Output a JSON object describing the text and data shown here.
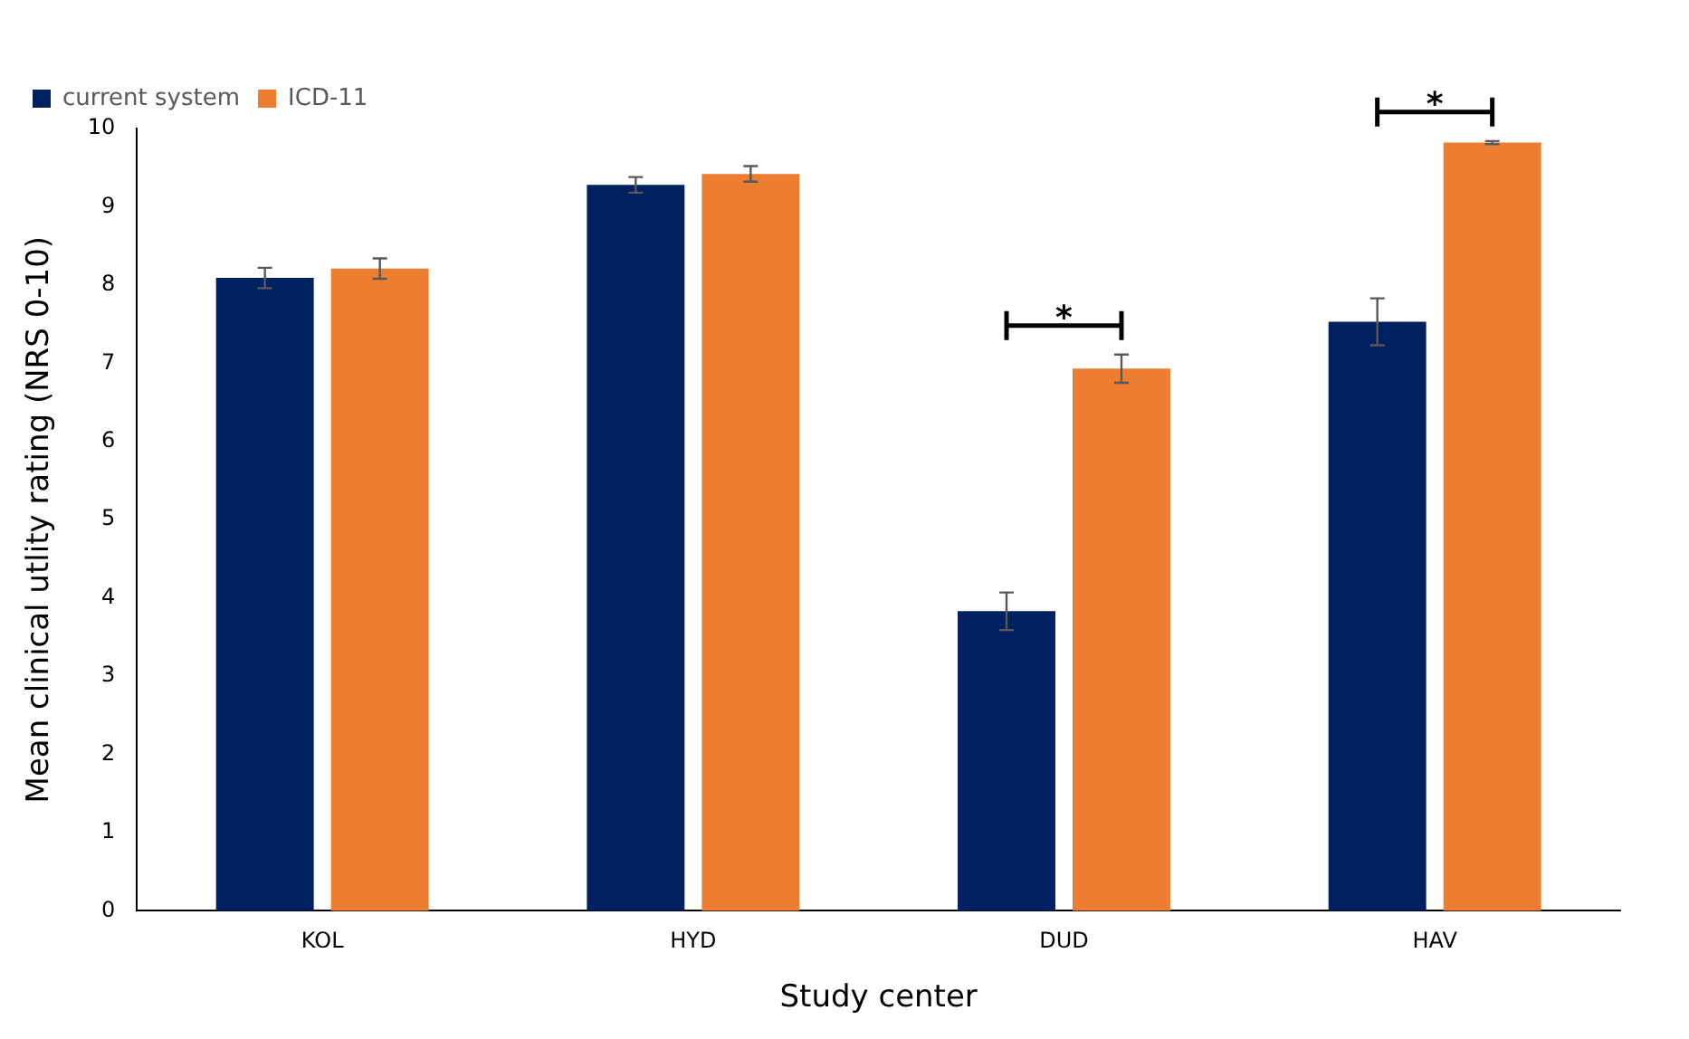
{
  "chart_data": {
    "type": "bar",
    "xlabel": "Study center",
    "ylabel": "Mean clinical utlity rating (NRS 0-10)",
    "categories": [
      "KOL",
      "HYD",
      "DUD",
      "HAV"
    ],
    "series": [
      {
        "name": "current system",
        "color": "#002060",
        "values": [
          8.09,
          9.28,
          3.83,
          7.53
        ],
        "errors": [
          0.13,
          0.1,
          0.24,
          0.3
        ]
      },
      {
        "name": "ICD-11",
        "color": "#ed7d31",
        "values": [
          8.21,
          9.42,
          6.93,
          9.82
        ],
        "errors": [
          0.13,
          0.1,
          0.18,
          0.02
        ]
      }
    ],
    "ylim": [
      0,
      10
    ],
    "yticks": [
      0,
      1,
      2,
      3,
      4,
      5,
      6,
      7,
      8,
      9,
      10
    ],
    "grid": false,
    "legend": "top left",
    "annotations": [
      "*",
      "*"
    ]
  }
}
